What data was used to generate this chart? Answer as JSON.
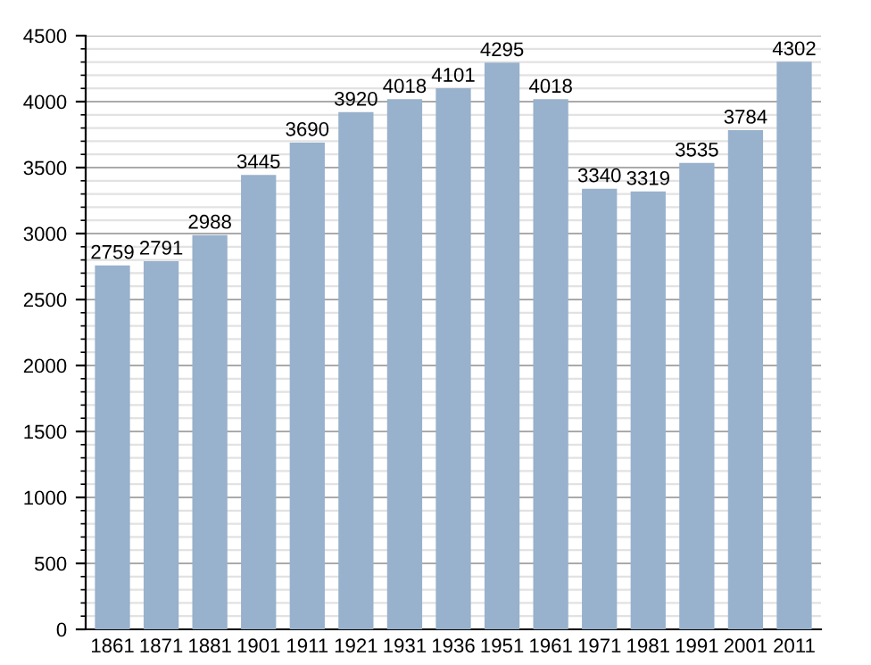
{
  "chart_data": {
    "type": "bar",
    "categories": [
      "1861",
      "1871",
      "1881",
      "1901",
      "1911",
      "1921",
      "1931",
      "1936",
      "1951",
      "1961",
      "1971",
      "1981",
      "1991",
      "2001",
      "2011"
    ],
    "values": [
      2759,
      2791,
      2988,
      3445,
      3690,
      3920,
      4018,
      4101,
      4295,
      4018,
      3340,
      3319,
      3535,
      3784,
      4302
    ],
    "color": "#98b1cc",
    "ylim": [
      0,
      4500
    ],
    "yticks": [
      0,
      500,
      1000,
      1500,
      2000,
      2500,
      3000,
      3500,
      4000,
      4500
    ],
    "grid": "y",
    "data_labels": true
  }
}
